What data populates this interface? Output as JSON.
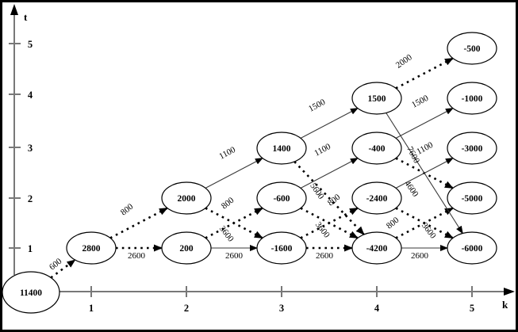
{
  "diagram": {
    "axes": {
      "y_label": "t",
      "x_label": "k",
      "y_ticks": [
        "1",
        "2",
        "3",
        "4",
        "5"
      ],
      "x_ticks": [
        "1",
        "2",
        "3",
        "4",
        "5"
      ]
    },
    "nodes": [
      {
        "id": "start",
        "value": "11400"
      },
      {
        "id": "k1t1",
        "k": 1,
        "t": 1,
        "value": "2800"
      },
      {
        "id": "k2t1",
        "k": 2,
        "t": 1,
        "value": "200"
      },
      {
        "id": "k2t2",
        "k": 2,
        "t": 2,
        "value": "2000"
      },
      {
        "id": "k3t1",
        "k": 3,
        "t": 1,
        "value": "-1600"
      },
      {
        "id": "k3t2",
        "k": 3,
        "t": 2,
        "value": "-600"
      },
      {
        "id": "k3t3",
        "k": 3,
        "t": 3,
        "value": "1400"
      },
      {
        "id": "k4t1",
        "k": 4,
        "t": 1,
        "value": "-4200"
      },
      {
        "id": "k4t2",
        "k": 4,
        "t": 2,
        "value": "-2400"
      },
      {
        "id": "k4t3",
        "k": 4,
        "t": 3,
        "value": "-400"
      },
      {
        "id": "k4t4",
        "k": 4,
        "t": 4,
        "value": "1500"
      },
      {
        "id": "k5t1",
        "k": 5,
        "t": 1,
        "value": "-6000"
      },
      {
        "id": "k5t2",
        "k": 5,
        "t": 2,
        "value": "-5000"
      },
      {
        "id": "k5t3",
        "k": 5,
        "t": 3,
        "value": "-3000"
      },
      {
        "id": "k5t4",
        "k": 5,
        "t": 4,
        "value": "-1000"
      },
      {
        "id": "k5t5",
        "k": 5,
        "t": 5,
        "value": "-500"
      }
    ],
    "edges": [
      {
        "from": "start",
        "to": "k1t1",
        "label": "600",
        "style": "dotted"
      },
      {
        "from": "k1t1",
        "to": "k2t1",
        "label": "2600",
        "style": "dotted"
      },
      {
        "from": "k1t1",
        "to": "k2t2",
        "label": "800",
        "style": "dotted"
      },
      {
        "from": "k2t1",
        "to": "k3t1",
        "label": "2600",
        "style": "solid"
      },
      {
        "from": "k2t1",
        "to": "k3t2",
        "label": "800",
        "style": "dotted"
      },
      {
        "from": "k2t2",
        "to": "k3t1",
        "label": "3600",
        "style": "dotted"
      },
      {
        "from": "k2t2",
        "to": "k3t3",
        "label": "1100",
        "style": "solid"
      },
      {
        "from": "k3t1",
        "to": "k4t1",
        "label": "2600",
        "style": "dotted"
      },
      {
        "from": "k3t1",
        "to": "k4t2",
        "label": "800",
        "style": "dotted"
      },
      {
        "from": "k3t2",
        "to": "k4t1",
        "label": "3600",
        "style": "dotted"
      },
      {
        "from": "k3t2",
        "to": "k4t3",
        "label": "1100",
        "style": "solid"
      },
      {
        "from": "k3t3",
        "to": "k4t1",
        "label": "5600",
        "style": "dotted"
      },
      {
        "from": "k3t3",
        "to": "k4t4",
        "label": "1500",
        "style": "solid"
      },
      {
        "from": "k4t1",
        "to": "k5t1",
        "label": "2600",
        "style": "solid"
      },
      {
        "from": "k4t1",
        "to": "k5t2",
        "label": "800",
        "style": "dotted"
      },
      {
        "from": "k4t2",
        "to": "k5t1",
        "label": "3600",
        "style": "dotted"
      },
      {
        "from": "k4t2",
        "to": "k5t3",
        "label": "1100",
        "style": "solid"
      },
      {
        "from": "k4t3",
        "to": "k5t2",
        "label": "4600",
        "style": "dotted"
      },
      {
        "from": "k4t3",
        "to": "k5t4",
        "label": "1500",
        "style": "solid"
      },
      {
        "from": "k4t4",
        "to": "k5t1",
        "label": "7600",
        "style": "solid"
      },
      {
        "from": "k4t4",
        "to": "k5t5",
        "label": "2000",
        "style": "dotted"
      }
    ]
  }
}
